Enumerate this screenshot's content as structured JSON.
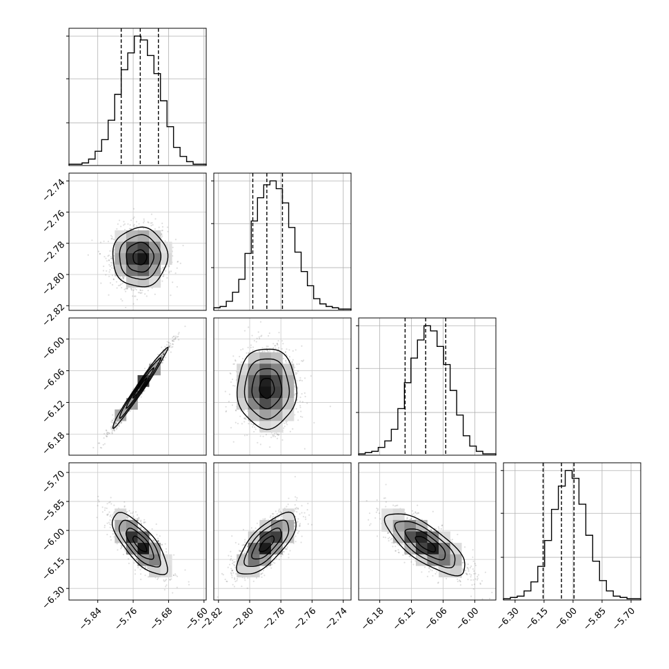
{
  "chart_data": {
    "type": "corner",
    "parameters": [
      {
        "range": [
          -5.905,
          -5.595
        ],
        "ticks": [
          -5.84,
          -5.76,
          -5.68,
          -5.6
        ],
        "tick_labels": [
          "−5.84",
          "−5.76",
          "−5.68",
          "−5.60"
        ],
        "quantiles": [
          -5.787,
          -5.744,
          -5.703
        ],
        "mean": -5.745,
        "sd": 0.031
      },
      {
        "range": [
          -2.823,
          -2.735
        ],
        "ticks": [
          -2.82,
          -2.8,
          -2.78,
          -2.76,
          -2.74
        ],
        "tick_labels": [
          "−2.82",
          "−2.80",
          "−2.78",
          "−2.76",
          "−2.74"
        ],
        "quantiles": [
          -2.798,
          -2.789,
          -2.779
        ],
        "mean": -2.789,
        "sd": 0.0095
      },
      {
        "range": [
          -6.22,
          -5.96
        ],
        "ticks": [
          -6.18,
          -6.12,
          -6.06,
          -6.0
        ],
        "tick_labels": [
          "−6.18",
          "−6.12",
          "−6.06",
          "−6.00"
        ],
        "quantiles": [
          -6.132,
          -6.093,
          -6.055
        ],
        "mean": -6.093,
        "sd": 0.038
      },
      {
        "range": [
          -6.36,
          -5.65
        ],
        "ticks": [
          -6.3,
          -6.15,
          -6.0,
          -5.85,
          -5.7
        ],
        "tick_labels": [
          "−6.30",
          "−6.15",
          "−6.00",
          "−5.85",
          "−5.70"
        ],
        "quantiles": [
          -6.155,
          -6.06,
          -5.995
        ],
        "mean": -6.07,
        "sd": 0.08
      }
    ],
    "histograms": [
      {
        "counts": [
          1,
          1,
          2,
          5,
          11,
          20,
          35,
          55,
          74,
          87,
          100,
          97,
          85,
          71,
          50,
          30,
          14,
          7,
          3,
          1,
          1
        ],
        "levels": [
          33,
          67,
          100
        ]
      },
      {
        "counts": [
          2,
          3,
          7,
          14,
          24,
          44,
          69,
          87,
          97,
          100,
          94,
          83,
          64,
          45,
          30,
          19,
          9,
          5,
          3,
          2,
          1,
          1
        ],
        "levels": [
          33,
          67,
          100
        ]
      },
      {
        "counts": [
          1,
          2,
          3,
          6,
          11,
          20,
          36,
          56,
          75,
          89,
          100,
          96,
          84,
          70,
          50,
          31,
          15,
          7,
          3,
          1,
          1
        ],
        "levels": [
          33,
          67,
          100
        ]
      },
      {
        "counts": [
          1,
          2,
          3,
          7,
          14,
          26,
          46,
          70,
          88,
          100,
          94,
          74,
          50,
          30,
          15,
          7,
          3,
          2,
          1,
          1
        ],
        "levels": [
          33,
          67,
          100
        ]
      }
    ],
    "correlations": {
      "1-0": 0.0,
      "2-0": 0.985,
      "2-1": 0.0,
      "3-0": -0.75,
      "3-1": 0.72,
      "3-2": -0.75
    },
    "quantile_style": "dashed",
    "contour_levels": 3,
    "grid": true
  }
}
